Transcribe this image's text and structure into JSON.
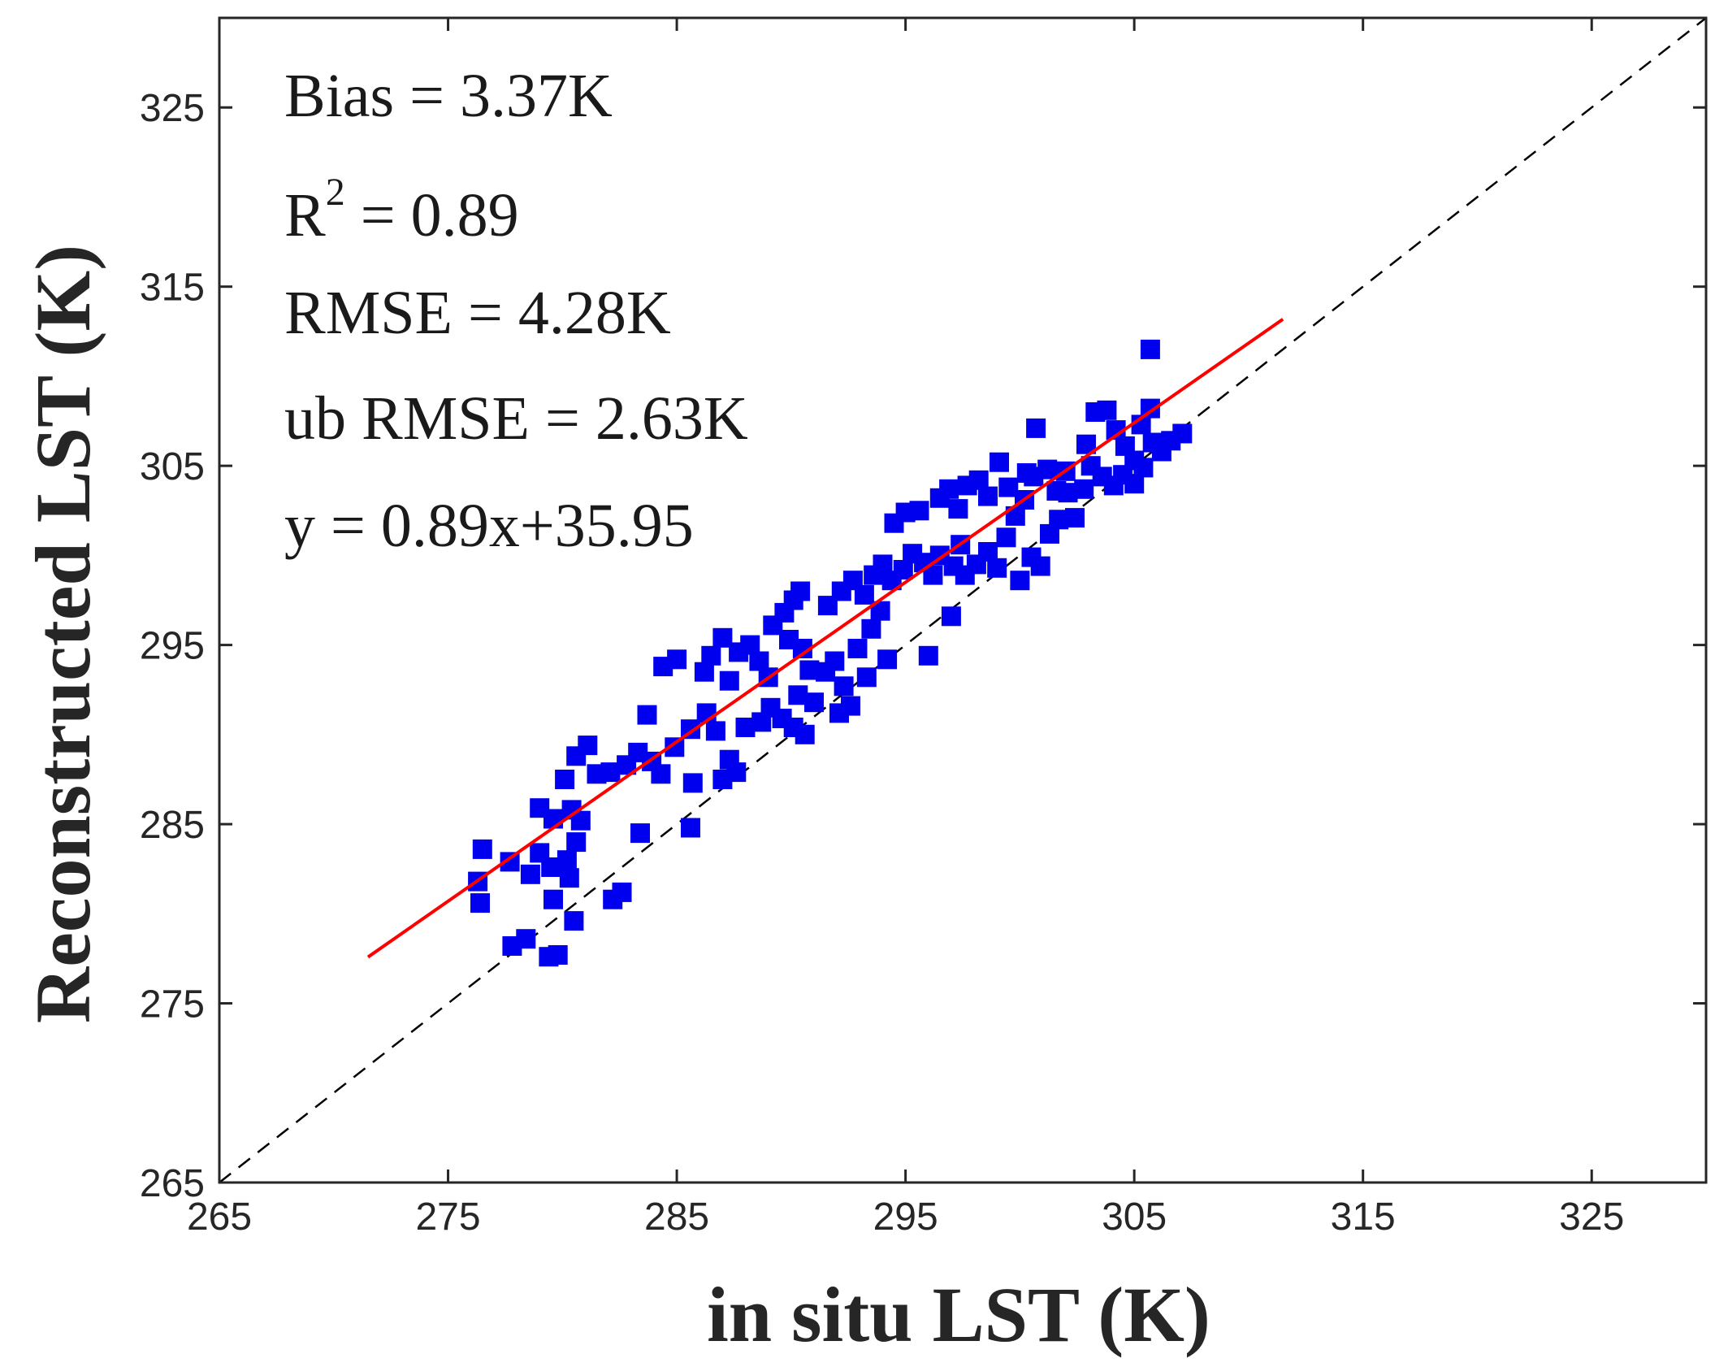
{
  "chart_data": {
    "type": "scatter",
    "title": "",
    "xlabel": "in situ LST (K)",
    "ylabel": "Reconstructed LST (K)",
    "xlim": [
      265,
      330
    ],
    "ylim": [
      265,
      330
    ],
    "xticks": [
      265,
      275,
      285,
      295,
      305,
      315,
      325
    ],
    "yticks": [
      265,
      275,
      285,
      295,
      305,
      315,
      325
    ],
    "grid": false,
    "legend": "none",
    "colors": {
      "points": "#0000ee",
      "fit_line": "#ff0000",
      "one_to_one": "#000000"
    },
    "annotations": {
      "bias": "Bias = 3.37K",
      "r2_prefix": "R",
      "r2_exp": "2",
      "r2_value": " = 0.89",
      "rmse": "RMSE = 4.28K",
      "ubrmse": "ub RMSE = 2.63K",
      "equation": "y = 0.89x+35.95"
    },
    "fit": {
      "slope": 0.89,
      "intercept": 35.95,
      "x_range": [
        271.5,
        311.5
      ]
    },
    "one_to_one": {
      "x_range": [
        265,
        330
      ]
    },
    "series": [
      {
        "name": "observations",
        "marker": "square",
        "points": [
          [
            276.5,
            283.6
          ],
          [
            276.3,
            281.8
          ],
          [
            276.4,
            280.6
          ],
          [
            277.7,
            282.9
          ],
          [
            278.6,
            282.2
          ],
          [
            279.0,
            283.4
          ],
          [
            279.5,
            282.6
          ],
          [
            280.2,
            283.0
          ],
          [
            277.8,
            278.2
          ],
          [
            278.4,
            278.6
          ],
          [
            279.4,
            277.6
          ],
          [
            279.8,
            277.7
          ],
          [
            279.6,
            280.8
          ],
          [
            280.5,
            279.6
          ],
          [
            280.3,
            282.0
          ],
          [
            280.6,
            284.0
          ],
          [
            280.8,
            285.2
          ],
          [
            280.4,
            285.8
          ],
          [
            279.0,
            285.9
          ],
          [
            279.6,
            285.3
          ],
          [
            280.1,
            287.5
          ],
          [
            280.6,
            288.8
          ],
          [
            281.1,
            289.4
          ],
          [
            281.5,
            287.8
          ],
          [
            282.1,
            287.9
          ],
          [
            282.8,
            288.3
          ],
          [
            283.3,
            289.0
          ],
          [
            283.9,
            288.5
          ],
          [
            284.3,
            287.8
          ],
          [
            284.9,
            289.3
          ],
          [
            285.6,
            290.3
          ],
          [
            286.3,
            291.2
          ],
          [
            282.2,
            280.8
          ],
          [
            282.6,
            281.2
          ],
          [
            283.4,
            284.5
          ],
          [
            283.7,
            291.1
          ],
          [
            284.4,
            293.8
          ],
          [
            285.0,
            294.2
          ],
          [
            285.7,
            287.3
          ],
          [
            285.6,
            284.8
          ],
          [
            286.2,
            293.5
          ],
          [
            286.5,
            294.4
          ],
          [
            287.0,
            295.4
          ],
          [
            287.3,
            293.0
          ],
          [
            287.7,
            294.6
          ],
          [
            288.2,
            295.0
          ],
          [
            288.6,
            294.1
          ],
          [
            289.0,
            293.2
          ],
          [
            286.7,
            290.2
          ],
          [
            287.3,
            288.6
          ],
          [
            287.6,
            287.9
          ],
          [
            287.0,
            287.5
          ],
          [
            288.0,
            290.4
          ],
          [
            288.7,
            290.7
          ],
          [
            289.1,
            291.5
          ],
          [
            289.6,
            290.9
          ],
          [
            289.2,
            296.1
          ],
          [
            289.7,
            296.8
          ],
          [
            290.1,
            297.5
          ],
          [
            290.4,
            298.0
          ],
          [
            289.9,
            295.3
          ],
          [
            290.5,
            294.8
          ],
          [
            290.8,
            293.6
          ],
          [
            290.3,
            292.2
          ],
          [
            290.1,
            290.4
          ],
          [
            290.6,
            290.0
          ],
          [
            291.0,
            291.8
          ],
          [
            291.5,
            293.5
          ],
          [
            291.9,
            294.1
          ],
          [
            292.3,
            292.7
          ],
          [
            292.6,
            291.6
          ],
          [
            292.1,
            291.2
          ],
          [
            291.6,
            297.2
          ],
          [
            292.2,
            298.0
          ],
          [
            292.7,
            298.6
          ],
          [
            293.2,
            297.8
          ],
          [
            293.6,
            298.9
          ],
          [
            294.0,
            299.5
          ],
          [
            294.4,
            298.6
          ],
          [
            294.9,
            299.2
          ],
          [
            292.9,
            294.8
          ],
          [
            293.5,
            295.9
          ],
          [
            293.9,
            296.9
          ],
          [
            294.2,
            294.2
          ],
          [
            293.3,
            293.2
          ],
          [
            294.5,
            301.8
          ],
          [
            295.0,
            302.4
          ],
          [
            295.6,
            302.5
          ],
          [
            295.3,
            300.1
          ],
          [
            295.8,
            299.6
          ],
          [
            296.2,
            298.9
          ],
          [
            296.0,
            294.4
          ],
          [
            296.5,
            300.0
          ],
          [
            297.1,
            299.4
          ],
          [
            297.4,
            300.6
          ],
          [
            297.0,
            296.6
          ],
          [
            296.5,
            303.2
          ],
          [
            296.9,
            303.7
          ],
          [
            297.3,
            302.6
          ],
          [
            297.7,
            303.9
          ],
          [
            298.2,
            304.2
          ],
          [
            298.6,
            303.3
          ],
          [
            299.1,
            305.2
          ],
          [
            299.5,
            303.8
          ],
          [
            297.6,
            298.9
          ],
          [
            298.1,
            299.5
          ],
          [
            298.6,
            300.2
          ],
          [
            299.0,
            299.3
          ],
          [
            299.4,
            301.0
          ],
          [
            299.8,
            302.2
          ],
          [
            300.2,
            303.1
          ],
          [
            300.6,
            304.4
          ],
          [
            300.0,
            298.6
          ],
          [
            300.5,
            299.9
          ],
          [
            300.9,
            299.4
          ],
          [
            301.3,
            301.2
          ],
          [
            301.7,
            302.0
          ],
          [
            302.1,
            303.5
          ],
          [
            302.4,
            302.1
          ],
          [
            302.8,
            303.7
          ],
          [
            300.3,
            304.6
          ],
          [
            300.7,
            307.1
          ],
          [
            301.2,
            304.8
          ],
          [
            301.6,
            303.6
          ],
          [
            302.0,
            304.7
          ],
          [
            302.9,
            306.2
          ],
          [
            303.3,
            308.0
          ],
          [
            303.8,
            308.1
          ],
          [
            304.2,
            307.0
          ],
          [
            304.6,
            306.1
          ],
          [
            305.0,
            305.3
          ],
          [
            305.4,
            304.9
          ],
          [
            305.8,
            306.3
          ],
          [
            306.2,
            305.8
          ],
          [
            306.6,
            306.4
          ],
          [
            307.1,
            306.8
          ],
          [
            303.1,
            305.0
          ],
          [
            303.6,
            304.4
          ],
          [
            304.1,
            303.9
          ],
          [
            304.5,
            304.5
          ],
          [
            305.0,
            304.0
          ],
          [
            305.3,
            307.3
          ],
          [
            305.7,
            308.2
          ],
          [
            305.7,
            311.5
          ]
        ]
      }
    ]
  }
}
